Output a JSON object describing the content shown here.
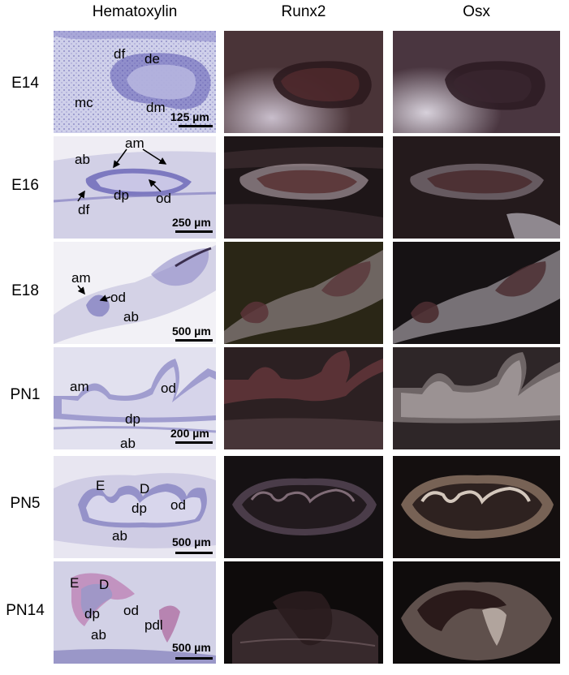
{
  "columns": [
    "Hematoxylin",
    "Runx2",
    "Osx"
  ],
  "rows": [
    {
      "label": "E14",
      "annotations": [
        "df",
        "de",
        "mc",
        "dm"
      ],
      "scale": "125 µm"
    },
    {
      "label": "E16",
      "annotations": [
        "am",
        "ab",
        "dp",
        "od",
        "df"
      ],
      "scale": "250 µm"
    },
    {
      "label": "E18",
      "annotations": [
        "am",
        "od",
        "ab"
      ],
      "scale": "500 µm"
    },
    {
      "label": "PN1",
      "annotations": [
        "am",
        "od",
        "dp",
        "ab"
      ],
      "scale": "200 µm"
    },
    {
      "label": "PN5",
      "annotations": [
        "E",
        "D",
        "dp",
        "od",
        "ab"
      ],
      "scale": "500 µm"
    },
    {
      "label": "PN14",
      "annotations": [
        "E",
        "D",
        "dp",
        "od",
        "pdl",
        "ab"
      ],
      "scale": "500 µm"
    }
  ]
}
